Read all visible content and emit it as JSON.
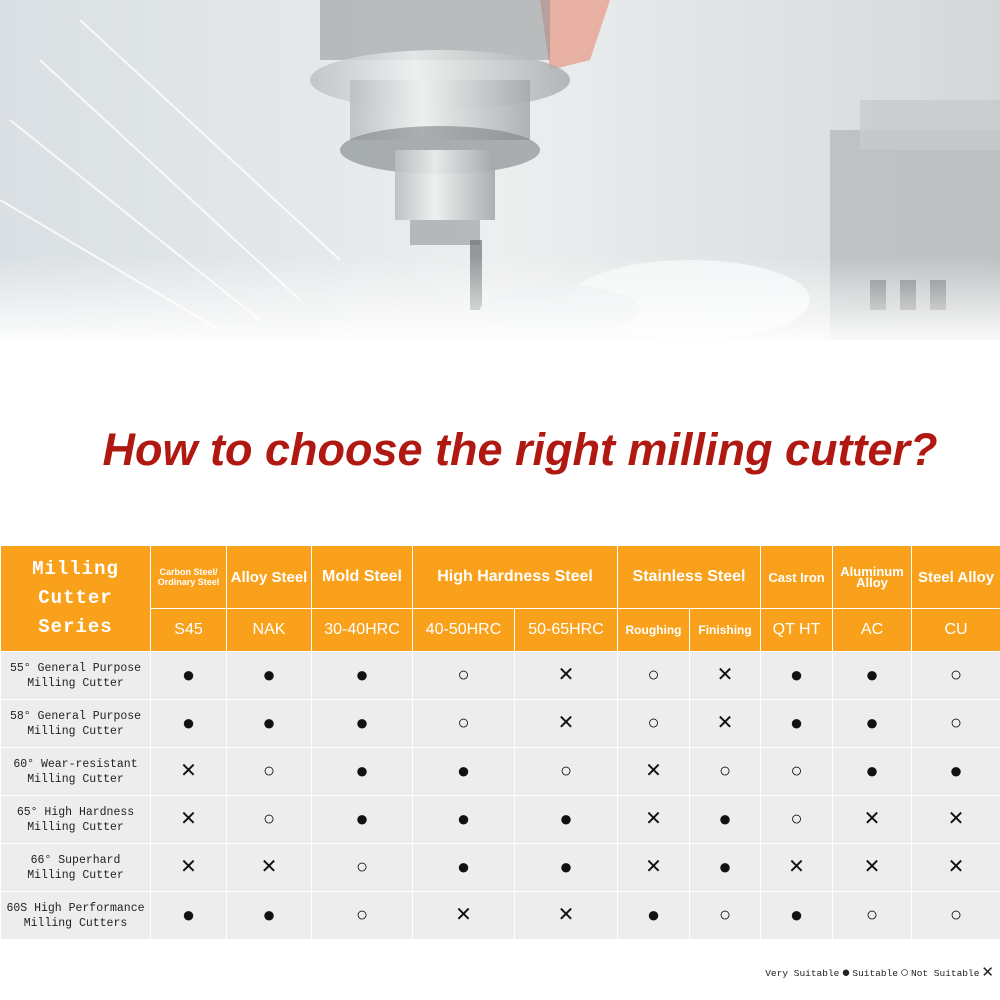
{
  "title": "How to choose the right milling cutter?",
  "colors": {
    "header": "#f9a11b",
    "title": "#b01812",
    "row_bg": "#ededed"
  },
  "symbols": {
    "very_suitable": "●",
    "suitable": "○",
    "not_suitable": "✕"
  },
  "table": {
    "series_header": [
      "Milling",
      "Cutter",
      "Series"
    ],
    "materials": [
      {
        "name": "Carbon Steel/ Ordinary Steel",
        "code": "S45"
      },
      {
        "name": "Alloy Steel",
        "code": "NAK"
      },
      {
        "name": "Mold Steel",
        "code": "30-40HRC"
      },
      {
        "name": "High Hardness Steel",
        "codes": [
          "40-50HRC",
          "50-65HRC"
        ]
      },
      {
        "name": "Stainless Steel",
        "codes": [
          "Roughing",
          "Finishing"
        ]
      },
      {
        "name": "Cast Iron",
        "code": "QT HT"
      },
      {
        "name": "Aluminum Alloy",
        "code": "AC"
      },
      {
        "name": "Steel Alloy",
        "code": "CU"
      }
    ],
    "rows": [
      {
        "name": [
          "55° General Purpose",
          "Milling Cutter"
        ],
        "values": [
          "very",
          "very",
          "very",
          "suit",
          "not",
          "suit",
          "not",
          "very",
          "very",
          "suit"
        ]
      },
      {
        "name": [
          "58° General Purpose",
          "Milling Cutter"
        ],
        "values": [
          "very",
          "very",
          "very",
          "suit",
          "not",
          "suit",
          "not",
          "very",
          "very",
          "suit"
        ]
      },
      {
        "name": [
          "60° Wear-resistant",
          "Milling Cutter"
        ],
        "values": [
          "not",
          "suit",
          "very",
          "very",
          "suit",
          "not",
          "suit",
          "suit",
          "very",
          "very"
        ]
      },
      {
        "name": [
          "65° High Hardness",
          "Milling Cutter"
        ],
        "values": [
          "not",
          "suit",
          "very",
          "very",
          "very",
          "not",
          "very",
          "suit",
          "not",
          "not"
        ]
      },
      {
        "name": [
          "66°  Superhard",
          "Milling Cutter"
        ],
        "values": [
          "not",
          "not",
          "suit",
          "very",
          "very",
          "not",
          "very",
          "not",
          "not",
          "not"
        ]
      },
      {
        "name": [
          "60S High Performance",
          "Milling Cutters"
        ],
        "values": [
          "very",
          "very",
          "suit",
          "not",
          "not",
          "very",
          "suit",
          "very",
          "suit",
          "suit"
        ]
      }
    ]
  },
  "legend": {
    "very_suitable": "Very Suitable",
    "suitable": "Suitable",
    "not_suitable": "Not Suitable"
  }
}
